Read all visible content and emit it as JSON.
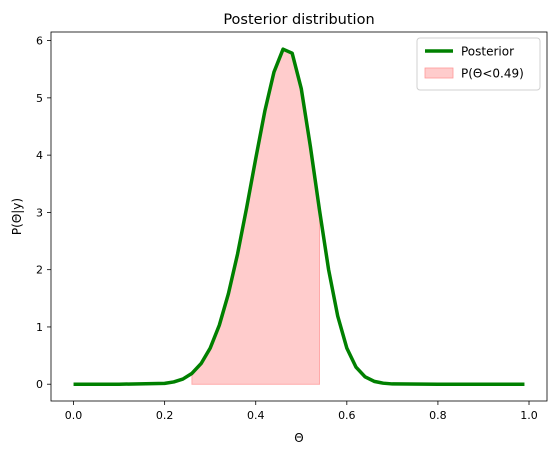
{
  "chart_data": {
    "type": "line",
    "title": "Posterior distribution",
    "xlabel": "Θ",
    "ylabel": "P(Θ|y)",
    "xlim": [
      -0.0495,
      1.0395
    ],
    "ylim": [
      -0.293,
      6.15
    ],
    "xticks": [
      "0.0",
      "0.2",
      "0.4",
      "0.6",
      "0.8",
      "1.0"
    ],
    "xtick_values": [
      0,
      0.2,
      0.4,
      0.6,
      0.8,
      1.0
    ],
    "yticks": [
      "0",
      "1",
      "2",
      "3",
      "4",
      "5",
      "6"
    ],
    "ytick_values": [
      0,
      1,
      2,
      3,
      4,
      5,
      6
    ],
    "grid": false,
    "legend_position": "top-right",
    "series": [
      {
        "name": "Posterior",
        "kind": "line",
        "color": "#008000",
        "x": [
          0.0,
          0.1,
          0.2,
          0.22,
          0.24,
          0.26,
          0.28,
          0.3,
          0.32,
          0.34,
          0.36,
          0.38,
          0.4,
          0.42,
          0.44,
          0.46,
          0.48,
          0.5,
          0.52,
          0.54,
          0.56,
          0.58,
          0.6,
          0.62,
          0.64,
          0.66,
          0.68,
          0.7,
          0.8,
          0.9,
          0.99
        ],
        "y": [
          0.0,
          0.0,
          0.015,
          0.04,
          0.09,
          0.19,
          0.36,
          0.63,
          1.03,
          1.58,
          2.27,
          3.08,
          3.94,
          4.77,
          5.45,
          5.85,
          5.78,
          5.16,
          4.15,
          3.04,
          2.0,
          1.19,
          0.63,
          0.3,
          0.13,
          0.05,
          0.018,
          0.005,
          0.0,
          0.0,
          0.0
        ]
      },
      {
        "name": "P(Θ<0.49)",
        "kind": "area",
        "color": "#ffcccc",
        "x": [
          0.26,
          0.28,
          0.3,
          0.32,
          0.34,
          0.36,
          0.38,
          0.4,
          0.42,
          0.44,
          0.46,
          0.48,
          0.5,
          0.52,
          0.54
        ],
        "y": [
          0.19,
          0.36,
          0.63,
          1.03,
          1.58,
          2.27,
          3.08,
          3.94,
          4.77,
          5.45,
          5.85,
          5.78,
          5.16,
          4.15,
          3.04
        ]
      }
    ]
  }
}
